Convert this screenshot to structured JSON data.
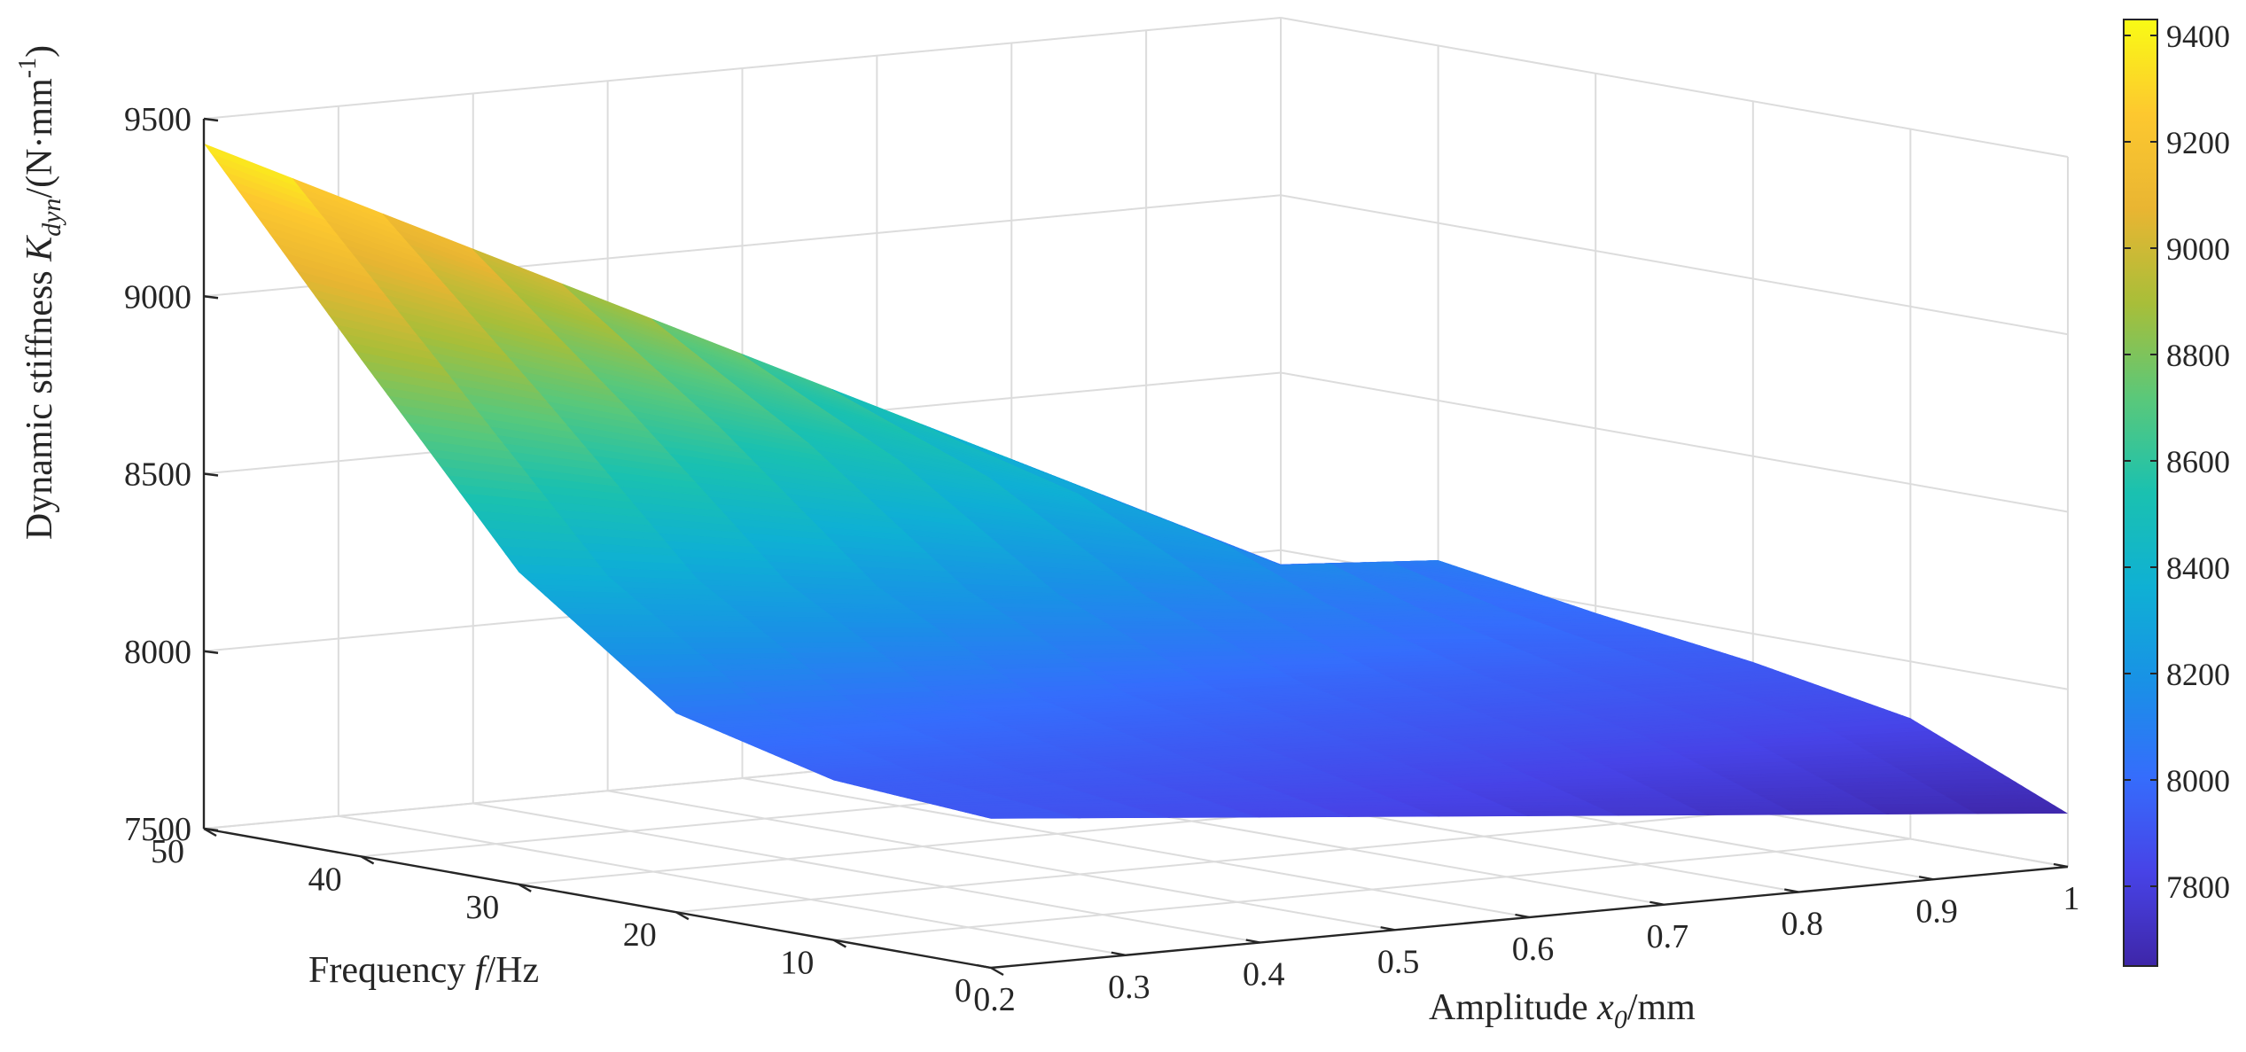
{
  "chart_data": {
    "type": "surface",
    "zlabel": {
      "main": "Dynamic stiffness ",
      "var": "K",
      "sub": "dyn",
      "unit": "/(N·mm",
      "exp": "-1",
      "close": ")"
    },
    "ylabel": {
      "main": "Frequency ",
      "var": "f",
      "unit": "/Hz"
    },
    "xlabel": {
      "main": "Amplitude ",
      "var": "x",
      "sub": "0",
      "unit": "/mm"
    },
    "xlim": [
      0.2,
      1.0
    ],
    "ylim": [
      0,
      50
    ],
    "zlim": [
      7500,
      9500
    ],
    "xticks": [
      "0.2",
      "0.3",
      "0.4",
      "0.5",
      "0.6",
      "0.7",
      "0.8",
      "0.9",
      "1"
    ],
    "yticks": [
      "0",
      "10",
      "20",
      "30",
      "40",
      "50"
    ],
    "zticks": [
      "7500",
      "8000",
      "8500",
      "9000",
      "9500"
    ],
    "colorbar": {
      "min": 7650,
      "max": 9430,
      "ticks": [
        "7800",
        "8000",
        "8200",
        "8400",
        "8600",
        "8800",
        "9000",
        "9200",
        "9400"
      ],
      "colormap": "parula"
    },
    "grid": true,
    "surface": {
      "amplitude": [
        0.2,
        1.0
      ],
      "frequency": [
        0,
        10,
        20,
        30,
        40,
        50
      ],
      "stiffness": [
        [
          7920,
          7650
        ],
        [
          7950,
          7840
        ],
        [
          8060,
          7920
        ],
        [
          8380,
          7980
        ],
        [
          8900,
          8050
        ],
        [
          9430,
          7960
        ]
      ]
    }
  }
}
